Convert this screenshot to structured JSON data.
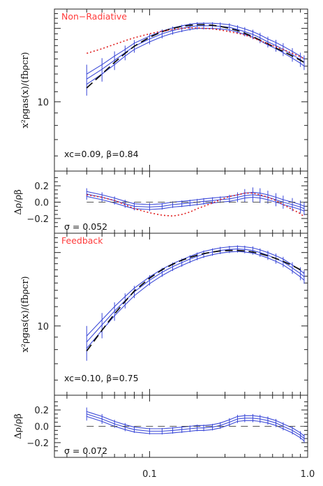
{
  "chart_data": [
    {
      "type": "line",
      "title": "Non−Radiative",
      "ylabel": "x²ρgas(x)/(fbρcr)",
      "yscale": "log",
      "ylim": [
        5.2,
        24
      ],
      "xscale": "log",
      "xlim": [
        0.025,
        1.0
      ],
      "yticks": [
        {
          "value": 10,
          "label": "10"
        }
      ],
      "annotation": "xc=0.09, β=0.84",
      "colors": {
        "data": "#3b49d8",
        "model": "#111111",
        "dotted": "#e02020",
        "title": "#ff3a3a"
      },
      "x": [
        0.04,
        0.05,
        0.06,
        0.07,
        0.08,
        0.1,
        0.12,
        0.14,
        0.16,
        0.18,
        0.2,
        0.22,
        0.25,
        0.28,
        0.32,
        0.36,
        0.4,
        0.45,
        0.5,
        0.56,
        0.63,
        0.7,
        0.8,
        0.9,
        0.95
      ],
      "series": [
        {
          "role": "data-central",
          "y": [
            12.4,
            13.6,
            14.8,
            15.9,
            16.9,
            18.1,
            19.0,
            19.6,
            20.0,
            20.3,
            20.5,
            20.5,
            20.5,
            20.4,
            20.2,
            19.8,
            19.4,
            18.9,
            18.3,
            17.6,
            17.0,
            16.4,
            15.6,
            14.9,
            14.5
          ],
          "err": [
            1.8,
            1.5,
            1.3,
            1.1,
            1.0,
            0.9,
            0.8,
            0.75,
            0.7,
            0.7,
            0.7,
            0.7,
            0.7,
            0.75,
            0.8,
            0.8,
            0.85,
            0.85,
            0.9,
            0.9,
            0.95,
            1.0,
            1.0,
            1.0,
            1.0
          ]
        },
        {
          "role": "data-upper",
          "y": [
            13.0,
            14.2,
            15.4,
            16.4,
            17.4,
            18.6,
            19.5,
            20.1,
            20.5,
            20.8,
            21.0,
            21.0,
            21.0,
            20.9,
            20.7,
            20.3,
            19.9,
            19.4,
            18.8,
            18.1,
            17.5,
            16.9,
            16.1,
            15.4,
            15.0
          ]
        },
        {
          "role": "data-lower",
          "y": [
            11.8,
            13.0,
            14.2,
            15.4,
            16.4,
            17.6,
            18.5,
            19.1,
            19.5,
            19.8,
            20.0,
            20.0,
            20.0,
            19.9,
            19.7,
            19.3,
            18.9,
            18.4,
            17.8,
            17.1,
            16.5,
            15.9,
            15.1,
            14.4,
            14.0
          ]
        },
        {
          "role": "model-dashed",
          "y": [
            11.4,
            13.0,
            14.5,
            15.8,
            16.9,
            18.4,
            19.4,
            20.0,
            20.4,
            20.6,
            20.7,
            20.7,
            20.6,
            20.4,
            20.0,
            19.6,
            19.1,
            18.5,
            17.9,
            17.3,
            16.6,
            16.1,
            15.4,
            14.8,
            14.5
          ]
        },
        {
          "role": "model-dotted",
          "y": [
            15.8,
            16.5,
            17.2,
            17.8,
            18.3,
            19.0,
            19.5,
            19.8,
            20.0,
            20.1,
            20.1,
            20.0,
            19.9,
            19.7,
            19.4,
            19.1,
            18.8,
            18.3,
            17.8,
            17.3,
            16.8,
            16.4,
            15.8,
            15.3,
            15.0
          ]
        }
      ]
    },
    {
      "type": "line",
      "ylabel": "Δρ/ρβ",
      "ylim": [
        -0.38,
        0.38
      ],
      "xscale": "log",
      "xlim": [
        0.025,
        1.0
      ],
      "yticks": [
        {
          "value": 0.2,
          "label": "0.2"
        },
        {
          "value": 0.0,
          "label": "0.0"
        },
        {
          "value": -0.2,
          "label": "−0.2"
        }
      ],
      "annotation": "σ = 0.052",
      "x": [
        0.04,
        0.05,
        0.06,
        0.07,
        0.08,
        0.1,
        0.12,
        0.14,
        0.16,
        0.18,
        0.2,
        0.22,
        0.25,
        0.28,
        0.32,
        0.36,
        0.4,
        0.45,
        0.5,
        0.56,
        0.63,
        0.7,
        0.8,
        0.9,
        0.95
      ],
      "series": [
        {
          "role": "data-central",
          "y": [
            0.1,
            0.06,
            0.02,
            -0.02,
            -0.05,
            -0.06,
            -0.05,
            -0.03,
            -0.02,
            -0.01,
            0.0,
            0.01,
            0.02,
            0.03,
            0.04,
            0.06,
            0.08,
            0.09,
            0.08,
            0.06,
            0.03,
            0.0,
            -0.03,
            -0.06,
            -0.08
          ],
          "err": [
            0.07,
            0.06,
            0.05,
            0.05,
            0.05,
            0.05,
            0.04,
            0.04,
            0.04,
            0.04,
            0.04,
            0.04,
            0.04,
            0.04,
            0.05,
            0.06,
            0.08,
            0.09,
            0.09,
            0.08,
            0.08,
            0.08,
            0.08,
            0.08,
            0.08
          ]
        },
        {
          "role": "data-upper",
          "y": [
            0.13,
            0.09,
            0.05,
            0.01,
            -0.02,
            -0.03,
            -0.02,
            0.0,
            0.01,
            0.02,
            0.03,
            0.04,
            0.05,
            0.06,
            0.07,
            0.09,
            0.11,
            0.12,
            0.11,
            0.09,
            0.06,
            0.03,
            0.0,
            -0.03,
            -0.05
          ]
        },
        {
          "role": "data-lower",
          "y": [
            0.07,
            0.03,
            -0.01,
            -0.05,
            -0.08,
            -0.09,
            -0.08,
            -0.06,
            -0.05,
            -0.04,
            -0.03,
            -0.02,
            -0.01,
            0.0,
            0.01,
            0.03,
            0.05,
            0.06,
            0.05,
            0.03,
            0.0,
            -0.03,
            -0.06,
            -0.09,
            -0.11
          ]
        },
        {
          "role": "model-dashed",
          "y": [
            0.0,
            0.0,
            0.0,
            0.0,
            0.0,
            0.0,
            0.0,
            0.0,
            0.0,
            0.0,
            0.0,
            0.0,
            0.0,
            0.0,
            0.0,
            0.0,
            0.0,
            0.0,
            0.0,
            0.0,
            0.0,
            0.0,
            0.0,
            0.0,
            0.0
          ]
        },
        {
          "role": "model-dotted",
          "y": [
            0.09,
            0.06,
            0.02,
            -0.03,
            -0.08,
            -0.13,
            -0.16,
            -0.17,
            -0.15,
            -0.12,
            -0.08,
            -0.05,
            -0.01,
            0.03,
            0.07,
            0.09,
            0.11,
            0.11,
            0.09,
            0.06,
            0.02,
            -0.03,
            -0.09,
            -0.14,
            -0.18
          ]
        }
      ]
    },
    {
      "type": "line",
      "title": "Feedback",
      "ylabel": "x²ρgas(x)/(fbρcr)",
      "yscale": "log",
      "ylim": [
        5.2,
        24
      ],
      "xscale": "log",
      "xlim": [
        0.025,
        1.0
      ],
      "yticks": [
        {
          "value": 10,
          "label": "10"
        }
      ],
      "annotation": "xc=0.10, β=0.75",
      "x": [
        0.04,
        0.05,
        0.06,
        0.07,
        0.08,
        0.1,
        0.12,
        0.14,
        0.16,
        0.18,
        0.2,
        0.22,
        0.25,
        0.28,
        0.32,
        0.36,
        0.4,
        0.45,
        0.5,
        0.56,
        0.63,
        0.7,
        0.8,
        0.9,
        0.95
      ],
      "series": [
        {
          "role": "data-central",
          "y": [
            8.6,
            10.1,
            11.5,
            12.7,
            13.8,
            15.4,
            16.6,
            17.5,
            18.2,
            18.8,
            19.3,
            19.7,
            20.1,
            20.4,
            20.6,
            20.7,
            20.6,
            20.4,
            20.0,
            19.5,
            18.9,
            18.3,
            17.3,
            16.4,
            15.9
          ],
          "err": [
            1.4,
            1.2,
            1.0,
            0.9,
            0.8,
            0.75,
            0.7,
            0.7,
            0.7,
            0.7,
            0.7,
            0.7,
            0.7,
            0.7,
            0.7,
            0.7,
            0.75,
            0.8,
            0.8,
            0.85,
            0.9,
            0.9,
            0.95,
            1.0,
            1.0
          ]
        },
        {
          "role": "data-upper",
          "y": [
            9.1,
            10.6,
            12.0,
            13.2,
            14.3,
            15.9,
            17.1,
            18.0,
            18.7,
            19.3,
            19.8,
            20.2,
            20.6,
            20.9,
            21.1,
            21.2,
            21.1,
            20.9,
            20.5,
            20.0,
            19.4,
            18.8,
            17.8,
            16.9,
            16.4
          ]
        },
        {
          "role": "data-lower",
          "y": [
            8.1,
            9.6,
            11.0,
            12.2,
            13.3,
            14.9,
            16.1,
            17.0,
            17.7,
            18.3,
            18.8,
            19.2,
            19.6,
            19.9,
            20.1,
            20.2,
            20.1,
            19.9,
            19.5,
            19.0,
            18.4,
            17.8,
            16.8,
            15.9,
            15.4
          ]
        },
        {
          "role": "model-dashed",
          "y": [
            7.9,
            9.6,
            11.2,
            12.6,
            13.9,
            15.7,
            17.0,
            17.9,
            18.6,
            19.1,
            19.5,
            19.8,
            20.1,
            20.3,
            20.4,
            20.4,
            20.3,
            20.1,
            19.8,
            19.4,
            18.9,
            18.4,
            17.7,
            17.0,
            16.6
          ]
        }
      ]
    },
    {
      "type": "line",
      "xlabel": "",
      "ylabel": "Δρ/ρβ",
      "ylim": [
        -0.38,
        0.38
      ],
      "xscale": "log",
      "xlim": [
        0.025,
        1.0
      ],
      "xticks": [
        {
          "value": 0.1,
          "label": "0.1"
        },
        {
          "value": 1.0,
          "label": "1.0"
        }
      ],
      "yticks": [
        {
          "value": 0.2,
          "label": "0.2"
        },
        {
          "value": 0.0,
          "label": "0.0"
        },
        {
          "value": -0.2,
          "label": "−0.2"
        }
      ],
      "annotation": "σ = 0.072",
      "x": [
        0.04,
        0.05,
        0.06,
        0.07,
        0.08,
        0.1,
        0.12,
        0.14,
        0.16,
        0.18,
        0.2,
        0.22,
        0.25,
        0.28,
        0.32,
        0.36,
        0.4,
        0.45,
        0.5,
        0.56,
        0.63,
        0.7,
        0.8,
        0.9,
        0.95
      ],
      "series": [
        {
          "role": "data-central",
          "y": [
            0.15,
            0.09,
            0.03,
            -0.01,
            -0.04,
            -0.06,
            -0.06,
            -0.05,
            -0.04,
            -0.03,
            -0.02,
            -0.02,
            -0.01,
            0.01,
            0.05,
            0.09,
            0.1,
            0.1,
            0.09,
            0.07,
            0.04,
            0.0,
            -0.05,
            -0.11,
            -0.15
          ],
          "err": [
            0.08,
            0.06,
            0.05,
            0.05,
            0.04,
            0.04,
            0.04,
            0.04,
            0.04,
            0.04,
            0.04,
            0.04,
            0.04,
            0.04,
            0.05,
            0.05,
            0.05,
            0.05,
            0.05,
            0.05,
            0.05,
            0.05,
            0.05,
            0.05,
            0.05
          ]
        },
        {
          "role": "data-upper",
          "y": [
            0.18,
            0.12,
            0.06,
            0.02,
            -0.01,
            -0.03,
            -0.03,
            -0.02,
            -0.01,
            0.0,
            0.01,
            0.01,
            0.02,
            0.04,
            0.08,
            0.12,
            0.13,
            0.13,
            0.12,
            0.1,
            0.07,
            0.03,
            -0.02,
            -0.08,
            -0.12
          ]
        },
        {
          "role": "data-lower",
          "y": [
            0.12,
            0.06,
            0.0,
            -0.04,
            -0.07,
            -0.09,
            -0.09,
            -0.08,
            -0.07,
            -0.06,
            -0.05,
            -0.05,
            -0.04,
            -0.02,
            0.02,
            0.06,
            0.07,
            0.07,
            0.06,
            0.04,
            0.01,
            -0.03,
            -0.08,
            -0.14,
            -0.18
          ]
        },
        {
          "role": "model-dashed",
          "y": [
            0.0,
            0.0,
            0.0,
            0.0,
            0.0,
            0.0,
            0.0,
            0.0,
            0.0,
            0.0,
            0.0,
            0.0,
            0.0,
            0.0,
            0.0,
            0.0,
            0.0,
            0.0,
            0.0,
            0.0,
            0.0,
            0.0,
            0.0,
            0.0,
            0.0
          ]
        }
      ]
    }
  ]
}
